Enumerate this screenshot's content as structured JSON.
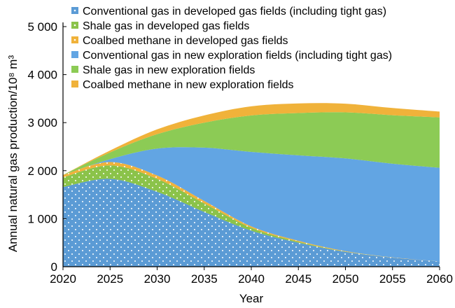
{
  "chart_data": {
    "type": "area",
    "stacked": true,
    "title": "",
    "xlabel": "Year",
    "ylabel": "Annual natural gas production/10⁸ m³",
    "x": [
      2020,
      2025,
      2030,
      2035,
      2040,
      2045,
      2050,
      2055,
      2060
    ],
    "x_ticks": [
      "2020",
      "2025",
      "2030",
      "2035",
      "2040",
      "2045",
      "2050",
      "2055",
      "2060"
    ],
    "ylim": [
      0,
      5000
    ],
    "y_ticks": [
      {
        "value": 0,
        "label": "0"
      },
      {
        "value": 1000,
        "label": "1 000"
      },
      {
        "value": 2000,
        "label": "2 000"
      },
      {
        "value": 3000,
        "label": "3 000"
      },
      {
        "value": 4000,
        "label": "4 000"
      },
      {
        "value": 5000,
        "label": "5 000"
      }
    ],
    "legend_position": "top-right",
    "series": [
      {
        "name": "Conventional gas in developed gas fields (including tight gas)",
        "color": "#5B9BD5",
        "pattern": "dots",
        "values": [
          1660,
          1830,
          1560,
          1140,
          750,
          500,
          310,
          190,
          110
        ]
      },
      {
        "name": "Shale gas in developed gas fields",
        "color": "#8BC34A",
        "pattern": "dots",
        "values": [
          200,
          280,
          270,
          180,
          60,
          20,
          5,
          0,
          0
        ]
      },
      {
        "name": "Coalbed methane in developed gas fields",
        "color": "#F0B23A",
        "pattern": "dots",
        "values": [
          50,
          70,
          70,
          50,
          30,
          20,
          10,
          5,
          0
        ]
      },
      {
        "name": "Conventional gas in new exploration fields (including tight gas)",
        "color": "#62A5E3",
        "pattern": "solid",
        "values": [
          0,
          60,
          560,
          1110,
          1550,
          1780,
          1930,
          1950,
          1950
        ]
      },
      {
        "name": "Shale gas in new exploration fields",
        "color": "#8CCB55",
        "pattern": "solid",
        "values": [
          0,
          140,
          300,
          520,
          760,
          880,
          960,
          1010,
          1050
        ]
      },
      {
        "name": "Coalbed methane in new exploration fields",
        "color": "#F0B23A",
        "pattern": "solid",
        "values": [
          0,
          40,
          100,
          150,
          190,
          200,
          180,
          150,
          120
        ]
      }
    ]
  }
}
